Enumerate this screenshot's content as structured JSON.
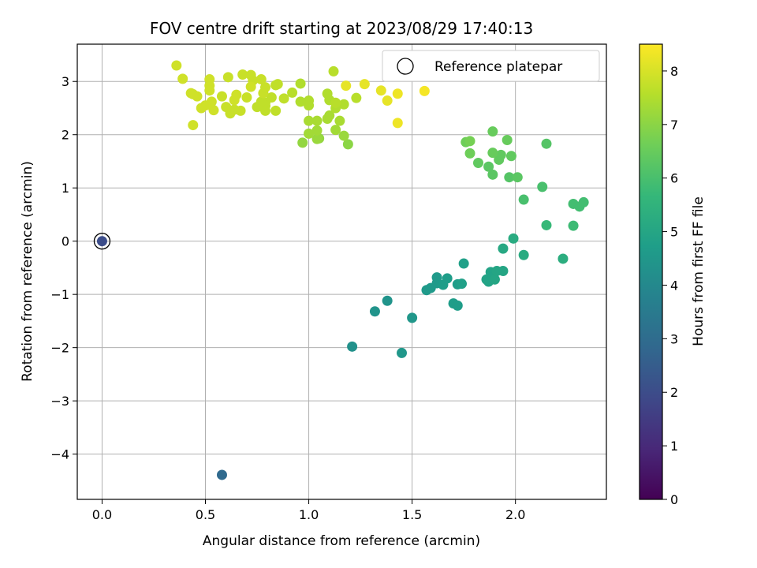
{
  "chart_data": {
    "type": "scatter",
    "title": "FOV centre drift starting at 2023/08/29 17:40:13",
    "xlabel": "Angular distance from reference (arcmin)",
    "ylabel": "Rotation from reference (arcmin)",
    "xlim": [
      -0.12,
      2.44
    ],
    "ylim": [
      -4.85,
      3.7
    ],
    "xticks": [
      0.0,
      0.5,
      1.0,
      1.5,
      2.0
    ],
    "xtick_labels": [
      "0.0",
      "0.5",
      "1.0",
      "1.5",
      "2.0"
    ],
    "yticks": [
      -4,
      -3,
      -2,
      -1,
      0,
      1,
      2,
      3
    ],
    "ytick_labels": [
      "−4",
      "−3",
      "−2",
      "−1",
      "0",
      "1",
      "2",
      "3"
    ],
    "grid": true,
    "legend": {
      "placement": "top-right",
      "entries": [
        "Reference platepar"
      ]
    },
    "colorbar": {
      "label": "Hours from first FF file",
      "range": [
        0,
        8.5
      ],
      "ticks": [
        0,
        1,
        2,
        3,
        4,
        5,
        6,
        7,
        8
      ],
      "tick_labels": [
        "0",
        "1",
        "2",
        "3",
        "4",
        "5",
        "6",
        "7",
        "8"
      ],
      "colormap": "viridis"
    },
    "reference": {
      "x": 0.0,
      "y": 0.0,
      "h": 2.0
    },
    "points": [
      {
        "x": 0.58,
        "y": -4.39,
        "h": 2.9
      },
      {
        "x": 1.21,
        "y": -1.98,
        "h": 4.3
      },
      {
        "x": 1.32,
        "y": -1.32,
        "h": 4.4
      },
      {
        "x": 1.38,
        "y": -1.12,
        "h": 4.4
      },
      {
        "x": 1.45,
        "y": -2.1,
        "h": 4.5
      },
      {
        "x": 1.5,
        "y": -1.44,
        "h": 4.5
      },
      {
        "x": 1.57,
        "y": -0.92,
        "h": 4.6
      },
      {
        "x": 1.59,
        "y": -0.88,
        "h": 4.6
      },
      {
        "x": 1.62,
        "y": -0.68,
        "h": 4.6
      },
      {
        "x": 1.62,
        "y": -0.79,
        "h": 4.6
      },
      {
        "x": 1.65,
        "y": -0.82,
        "h": 4.7
      },
      {
        "x": 1.67,
        "y": -0.7,
        "h": 4.7
      },
      {
        "x": 1.7,
        "y": -1.17,
        "h": 4.7
      },
      {
        "x": 1.72,
        "y": -1.21,
        "h": 4.7
      },
      {
        "x": 1.72,
        "y": -0.81,
        "h": 4.7
      },
      {
        "x": 1.74,
        "y": -0.8,
        "h": 4.8
      },
      {
        "x": 1.75,
        "y": -0.42,
        "h": 4.8
      },
      {
        "x": 1.86,
        "y": -0.72,
        "h": 4.9
      },
      {
        "x": 1.87,
        "y": -0.76,
        "h": 4.9
      },
      {
        "x": 1.88,
        "y": -0.58,
        "h": 4.9
      },
      {
        "x": 1.89,
        "y": -0.68,
        "h": 4.9
      },
      {
        "x": 1.9,
        "y": -0.72,
        "h": 5.0
      },
      {
        "x": 1.91,
        "y": -0.56,
        "h": 5.0
      },
      {
        "x": 1.94,
        "y": -0.56,
        "h": 5.0
      },
      {
        "x": 1.94,
        "y": -0.14,
        "h": 5.1
      },
      {
        "x": 1.99,
        "y": 0.05,
        "h": 5.2
      },
      {
        "x": 2.04,
        "y": -0.26,
        "h": 5.2
      },
      {
        "x": 2.23,
        "y": -0.33,
        "h": 5.3
      },
      {
        "x": 2.15,
        "y": 0.3,
        "h": 5.7
      },
      {
        "x": 2.28,
        "y": 0.29,
        "h": 5.8
      },
      {
        "x": 2.28,
        "y": 0.7,
        "h": 5.9
      },
      {
        "x": 2.31,
        "y": 0.65,
        "h": 5.9
      },
      {
        "x": 2.33,
        "y": 0.73,
        "h": 5.9
      },
      {
        "x": 2.04,
        "y": 0.78,
        "h": 6.0
      },
      {
        "x": 2.13,
        "y": 1.02,
        "h": 6.0
      },
      {
        "x": 2.15,
        "y": 1.83,
        "h": 6.2
      },
      {
        "x": 1.97,
        "y": 1.2,
        "h": 6.2
      },
      {
        "x": 2.01,
        "y": 1.2,
        "h": 6.3
      },
      {
        "x": 1.89,
        "y": 1.25,
        "h": 6.3
      },
      {
        "x": 1.87,
        "y": 1.4,
        "h": 6.3
      },
      {
        "x": 1.82,
        "y": 1.47,
        "h": 6.4
      },
      {
        "x": 1.92,
        "y": 1.53,
        "h": 6.4
      },
      {
        "x": 1.93,
        "y": 1.62,
        "h": 6.4
      },
      {
        "x": 1.98,
        "y": 1.6,
        "h": 6.4
      },
      {
        "x": 1.89,
        "y": 1.66,
        "h": 6.5
      },
      {
        "x": 1.78,
        "y": 1.65,
        "h": 6.6
      },
      {
        "x": 1.76,
        "y": 1.86,
        "h": 6.6
      },
      {
        "x": 1.78,
        "y": 1.88,
        "h": 6.7
      },
      {
        "x": 1.89,
        "y": 2.06,
        "h": 6.5
      },
      {
        "x": 1.96,
        "y": 1.9,
        "h": 6.5
      },
      {
        "x": 0.97,
        "y": 1.85,
        "h": 7.1
      },
      {
        "x": 1.05,
        "y": 1.93,
        "h": 7.1
      },
      {
        "x": 1.19,
        "y": 1.82,
        "h": 7.0
      },
      {
        "x": 1.04,
        "y": 1.92,
        "h": 7.2
      },
      {
        "x": 1.17,
        "y": 1.98,
        "h": 7.2
      },
      {
        "x": 1.0,
        "y": 2.02,
        "h": 7.3
      },
      {
        "x": 1.04,
        "y": 2.08,
        "h": 7.3
      },
      {
        "x": 1.13,
        "y": 2.09,
        "h": 7.3
      },
      {
        "x": 1.04,
        "y": 2.26,
        "h": 7.4
      },
      {
        "x": 1.09,
        "y": 2.3,
        "h": 7.4
      },
      {
        "x": 1.0,
        "y": 2.26,
        "h": 7.4
      },
      {
        "x": 1.1,
        "y": 2.36,
        "h": 7.4
      },
      {
        "x": 1.15,
        "y": 2.26,
        "h": 7.4
      },
      {
        "x": 1.13,
        "y": 2.5,
        "h": 7.5
      },
      {
        "x": 1.17,
        "y": 2.57,
        "h": 7.5
      },
      {
        "x": 1.0,
        "y": 2.55,
        "h": 7.5
      },
      {
        "x": 1.0,
        "y": 2.64,
        "h": 7.5
      },
      {
        "x": 0.96,
        "y": 2.62,
        "h": 7.5
      },
      {
        "x": 0.96,
        "y": 2.96,
        "h": 7.5
      },
      {
        "x": 1.09,
        "y": 2.77,
        "h": 7.5
      },
      {
        "x": 1.1,
        "y": 2.65,
        "h": 7.5
      },
      {
        "x": 1.13,
        "y": 2.6,
        "h": 7.6
      },
      {
        "x": 1.12,
        "y": 3.19,
        "h": 7.6
      },
      {
        "x": 1.23,
        "y": 2.69,
        "h": 7.6
      },
      {
        "x": 0.92,
        "y": 2.79,
        "h": 7.6
      },
      {
        "x": 0.88,
        "y": 2.68,
        "h": 7.7
      },
      {
        "x": 0.84,
        "y": 2.45,
        "h": 7.7
      },
      {
        "x": 0.84,
        "y": 2.93,
        "h": 7.7
      },
      {
        "x": 0.85,
        "y": 2.95,
        "h": 7.7
      },
      {
        "x": 0.82,
        "y": 2.7,
        "h": 7.7
      },
      {
        "x": 0.79,
        "y": 2.6,
        "h": 7.7
      },
      {
        "x": 0.79,
        "y": 2.54,
        "h": 7.7
      },
      {
        "x": 0.79,
        "y": 2.45,
        "h": 7.7
      },
      {
        "x": 0.77,
        "y": 2.62,
        "h": 7.7
      },
      {
        "x": 0.75,
        "y": 2.52,
        "h": 7.7
      },
      {
        "x": 0.78,
        "y": 2.78,
        "h": 7.8
      },
      {
        "x": 0.79,
        "y": 2.89,
        "h": 7.8
      },
      {
        "x": 0.77,
        "y": 3.04,
        "h": 7.8
      },
      {
        "x": 0.73,
        "y": 3.02,
        "h": 7.8
      },
      {
        "x": 0.72,
        "y": 3.12,
        "h": 7.8
      },
      {
        "x": 0.68,
        "y": 3.13,
        "h": 7.8
      },
      {
        "x": 0.7,
        "y": 2.7,
        "h": 7.8
      },
      {
        "x": 0.67,
        "y": 2.45,
        "h": 7.8
      },
      {
        "x": 0.64,
        "y": 2.47,
        "h": 7.8
      },
      {
        "x": 0.62,
        "y": 2.4,
        "h": 7.8
      },
      {
        "x": 0.6,
        "y": 2.52,
        "h": 7.8
      },
      {
        "x": 0.58,
        "y": 2.72,
        "h": 7.8
      },
      {
        "x": 0.61,
        "y": 3.08,
        "h": 7.8
      },
      {
        "x": 0.53,
        "y": 2.62,
        "h": 7.9
      },
      {
        "x": 0.54,
        "y": 2.46,
        "h": 7.9
      },
      {
        "x": 0.52,
        "y": 2.92,
        "h": 7.9
      },
      {
        "x": 0.52,
        "y": 2.83,
        "h": 7.9
      },
      {
        "x": 0.52,
        "y": 3.04,
        "h": 7.9
      },
      {
        "x": 0.5,
        "y": 2.55,
        "h": 7.9
      },
      {
        "x": 0.48,
        "y": 2.5,
        "h": 7.9
      },
      {
        "x": 0.46,
        "y": 2.72,
        "h": 7.9
      },
      {
        "x": 0.44,
        "y": 2.76,
        "h": 7.9
      },
      {
        "x": 0.43,
        "y": 2.78,
        "h": 7.9
      },
      {
        "x": 0.44,
        "y": 2.18,
        "h": 7.9
      },
      {
        "x": 0.39,
        "y": 3.05,
        "h": 7.9
      },
      {
        "x": 0.36,
        "y": 3.3,
        "h": 7.9
      },
      {
        "x": 0.64,
        "y": 2.65,
        "h": 7.9
      },
      {
        "x": 0.65,
        "y": 2.75,
        "h": 7.9
      },
      {
        "x": 0.72,
        "y": 2.9,
        "h": 7.9
      },
      {
        "x": 1.18,
        "y": 2.92,
        "h": 8.2
      },
      {
        "x": 1.27,
        "y": 2.95,
        "h": 8.2
      },
      {
        "x": 1.35,
        "y": 2.83,
        "h": 8.2
      },
      {
        "x": 1.38,
        "y": 2.64,
        "h": 8.2
      },
      {
        "x": 1.43,
        "y": 2.77,
        "h": 8.3
      },
      {
        "x": 1.43,
        "y": 2.22,
        "h": 8.3
      },
      {
        "x": 1.56,
        "y": 2.82,
        "h": 8.4
      }
    ]
  }
}
